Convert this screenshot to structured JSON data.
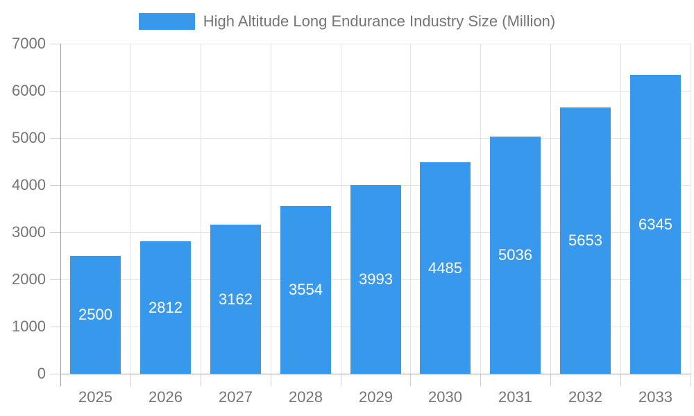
{
  "legend": {
    "label": "High Altitude Long Endurance Industry Size (Million)"
  },
  "chart_data": {
    "type": "bar",
    "title": "High Altitude Long Endurance Industry Size (Million)",
    "categories": [
      "2025",
      "2026",
      "2027",
      "2028",
      "2029",
      "2030",
      "2031",
      "2032",
      "2033"
    ],
    "values": [
      2500,
      2812,
      3162,
      3554,
      3993,
      4485,
      5036,
      5653,
      6345
    ],
    "value_labels": [
      "2500",
      "2812",
      "3162",
      "3554",
      "3993",
      "4485",
      "5036",
      "5653",
      "6345"
    ],
    "xlabel": "",
    "ylabel": "",
    "ylim": [
      0,
      7000
    ],
    "ytick_step": 1000,
    "yticks": [
      0,
      1000,
      2000,
      3000,
      4000,
      5000,
      6000,
      7000
    ],
    "ytick_labels": [
      "0",
      "1000",
      "2000",
      "3000",
      "4000",
      "5000",
      "6000",
      "7000"
    ],
    "grid": true,
    "legend_position": "top"
  },
  "colors": {
    "bar": "#3899ec",
    "value_label": "#ffffff",
    "axis_line": "#9e9e9e",
    "grid_line": "#e3e3e3",
    "tick_line": "#cfcfcf",
    "axis_label": "#757575",
    "legend_text": "#757575",
    "background": "#ffffff"
  }
}
